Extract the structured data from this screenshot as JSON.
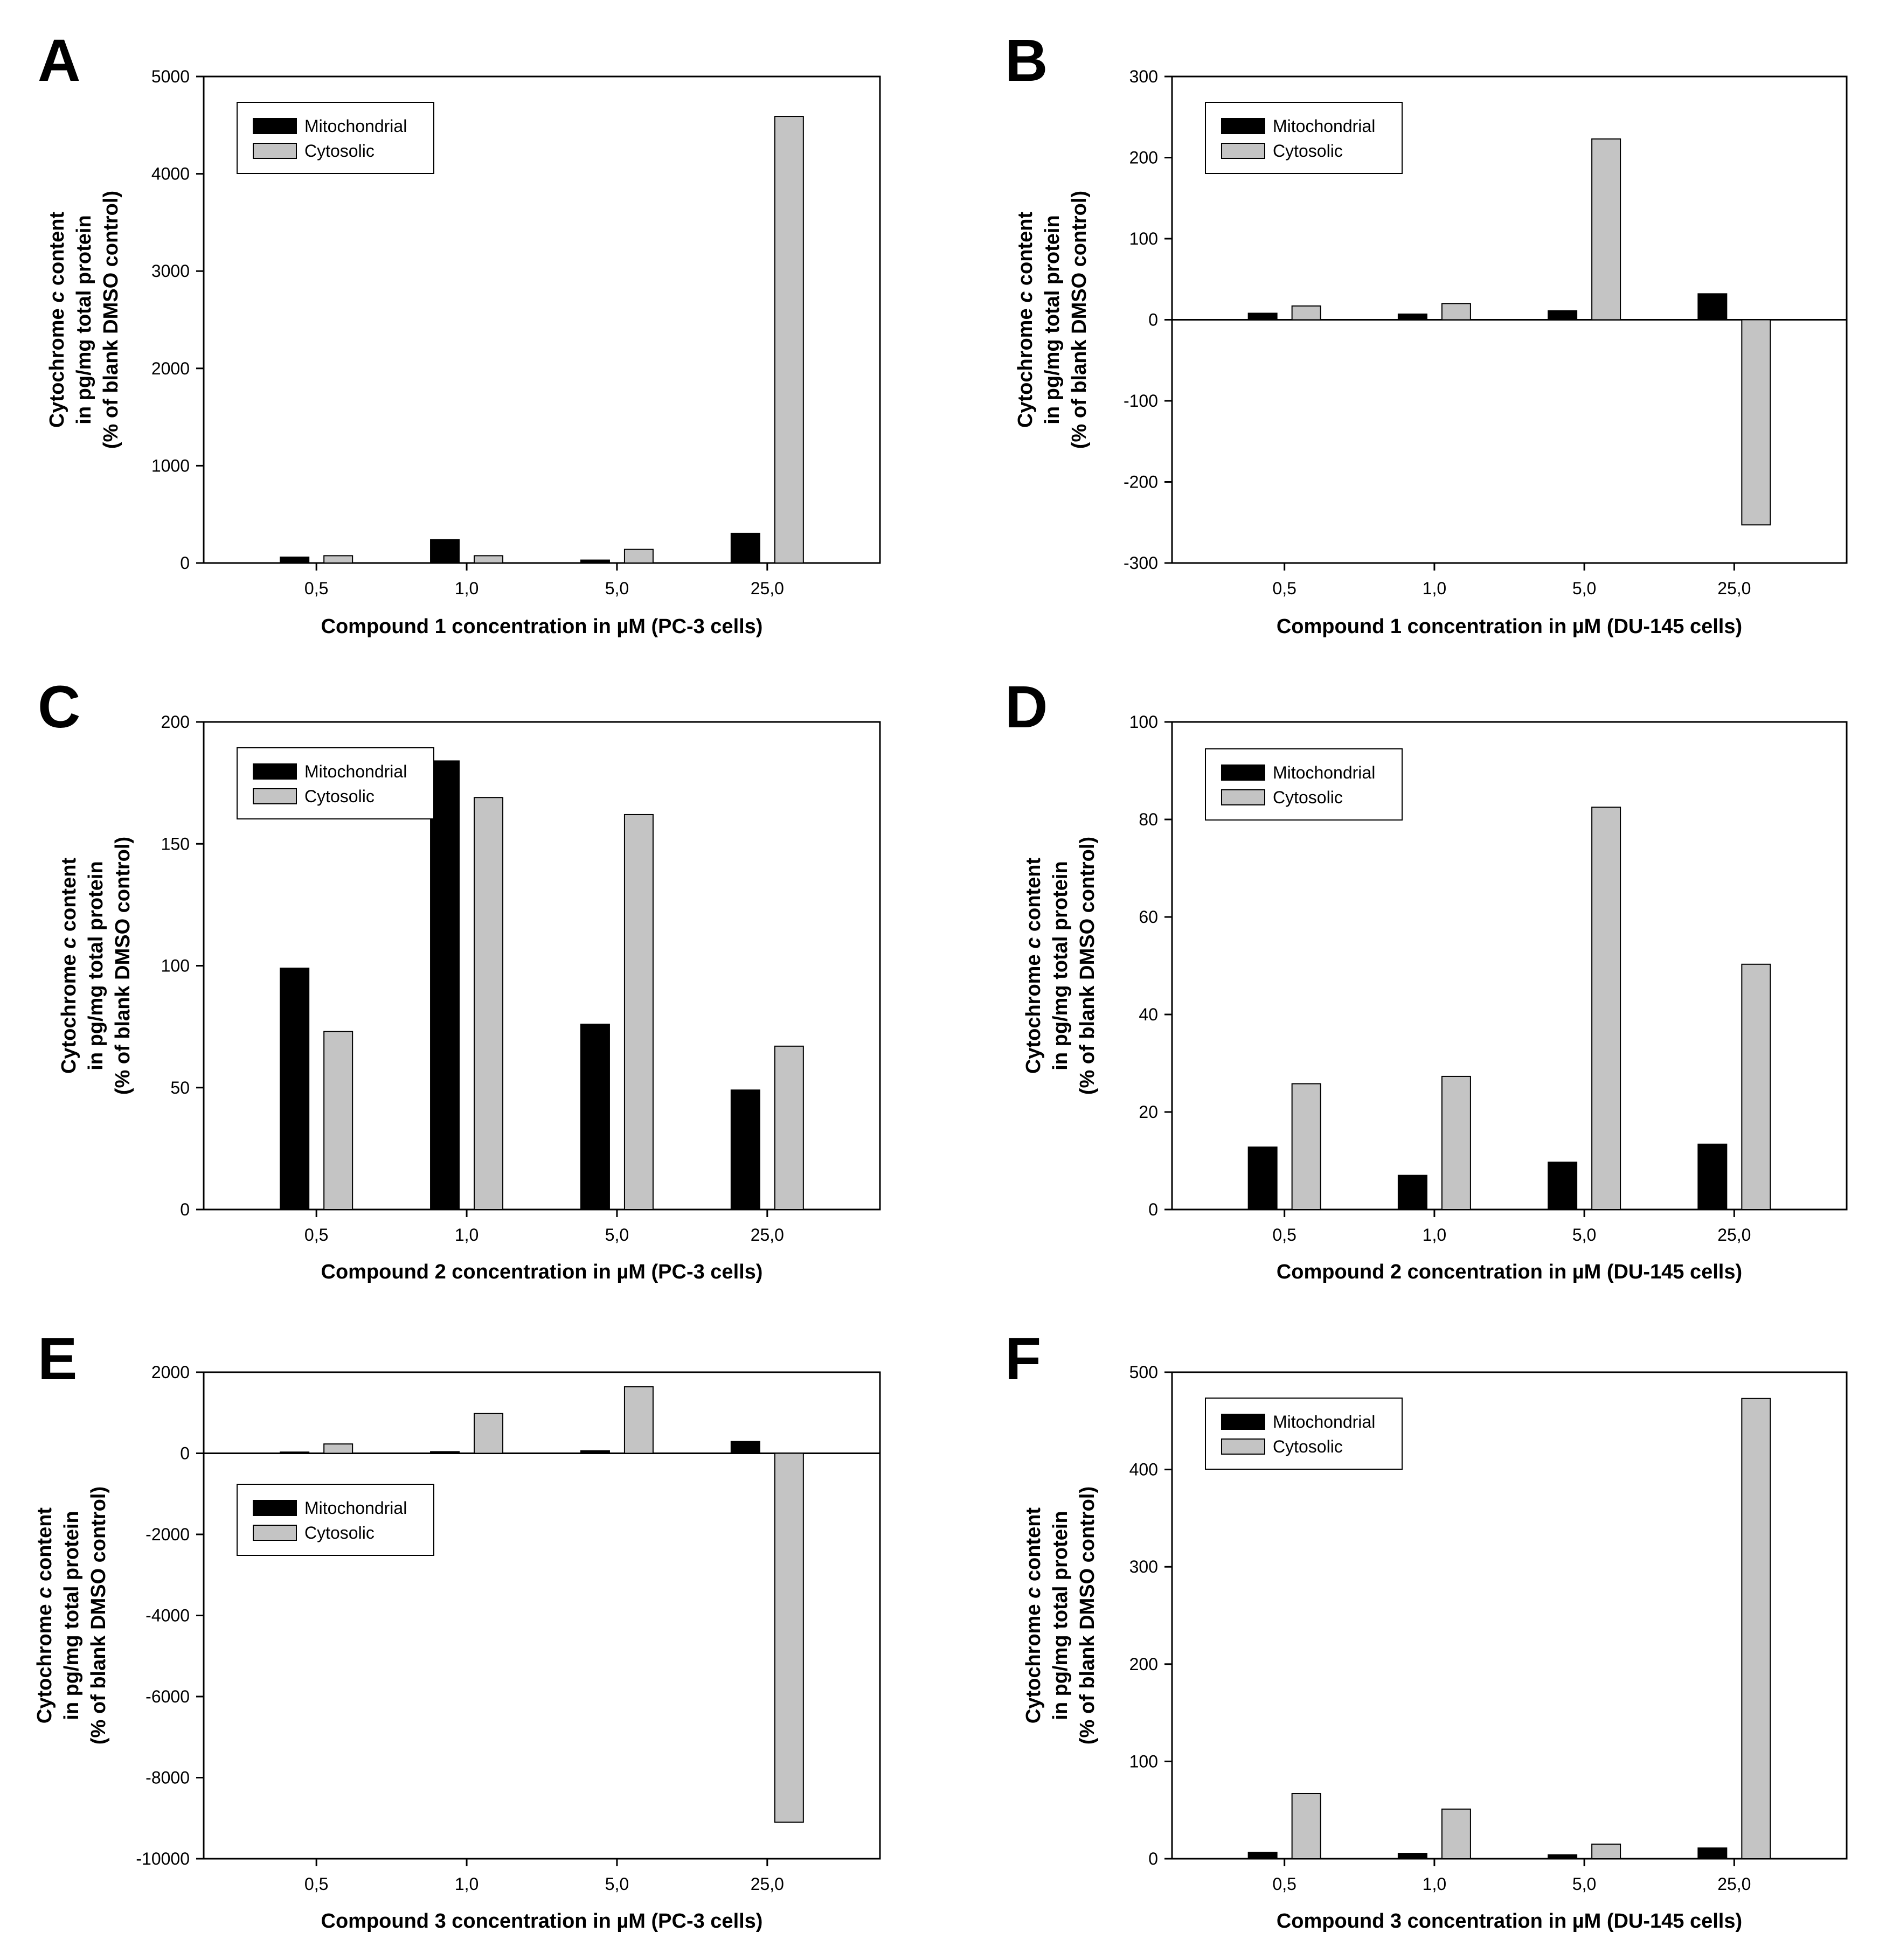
{
  "chart_data": [
    {
      "panel": "A",
      "type": "bar",
      "categories": [
        "0,5",
        "1,0",
        "5,0",
        "25,0"
      ],
      "series": [
        {
          "name": "Mitochondrial",
          "values": [
            60,
            240,
            30,
            305
          ]
        },
        {
          "name": "Cytosolic",
          "values": [
            75,
            75,
            140,
            4590
          ]
        }
      ],
      "ylim": [
        0,
        5000
      ],
      "yticks": [
        0,
        1000,
        2000,
        3000,
        4000,
        5000
      ],
      "ytick_labels": [
        "0",
        "1000",
        "2000",
        "3000",
        "4000",
        "5000"
      ],
      "ylabel": [
        "Cytochrome c content",
        "in pg/mg total protein",
        "(% of blank DMSO control)"
      ],
      "xlabel": "Compound 1 concentration in µM (PC-3 cells)",
      "legend_position": "top-left"
    },
    {
      "panel": "B",
      "type": "bar",
      "categories": [
        "0,5",
        "1,0",
        "5,0",
        "25,0"
      ],
      "series": [
        {
          "name": "Mitochondrial",
          "values": [
            8,
            7,
            11,
            32
          ]
        },
        {
          "name": "Cytosolic",
          "values": [
            17,
            20,
            223,
            -253
          ]
        }
      ],
      "ylim": [
        -300,
        300
      ],
      "yticks": [
        -300,
        -200,
        -100,
        0,
        100,
        200,
        300
      ],
      "ytick_labels": [
        "-300",
        "-200",
        "-100",
        "0",
        "100",
        "200",
        "300"
      ],
      "ylabel": [
        "Cytochrome c content",
        "in pg/mg total protein",
        "(% of blank DMSO control)"
      ],
      "xlabel": "Compound 1 concentration in µM (DU-145 cells)",
      "legend_position": "top-left"
    },
    {
      "panel": "C",
      "type": "bar",
      "categories": [
        "0,5",
        "1,0",
        "5,0",
        "25,0"
      ],
      "series": [
        {
          "name": "Mitochondrial",
          "values": [
            99,
            184,
            76,
            49
          ]
        },
        {
          "name": "Cytosolic",
          "values": [
            73,
            169,
            162,
            67
          ]
        }
      ],
      "ylim": [
        0,
        200
      ],
      "yticks": [
        0,
        50,
        100,
        150,
        200
      ],
      "ytick_labels": [
        "0",
        "50",
        "100",
        "150",
        "200"
      ],
      "ylabel": [
        "Cytochrome c content",
        "in pg/mg total protein",
        "(% of blank DMSO control)"
      ],
      "xlabel": "Compound 2 concentration in µM (PC-3 cells)",
      "legend_position": "top-left"
    },
    {
      "panel": "D",
      "type": "bar",
      "categories": [
        "0,5",
        "1,0",
        "5,0",
        "25,0"
      ],
      "series": [
        {
          "name": "Mitochondrial",
          "values": [
            12.8,
            7,
            9.7,
            13.4
          ]
        },
        {
          "name": "Cytosolic",
          "values": [
            25.8,
            27.3,
            82.5,
            50.3
          ]
        }
      ],
      "ylim": [
        0,
        100
      ],
      "yticks": [
        0,
        20,
        40,
        60,
        80,
        100
      ],
      "ytick_labels": [
        "0",
        "20",
        "40",
        "60",
        "80",
        "100"
      ],
      "ylabel": [
        "Cytochrome c content",
        "in pg/mg total protein",
        "(% of blank DMSO control)"
      ],
      "xlabel": "Compound 2 concentration in µM (DU-145 cells)",
      "legend_position": "top-left"
    },
    {
      "panel": "E",
      "type": "bar",
      "categories": [
        "0,5",
        "1,0",
        "5,0",
        "25,0"
      ],
      "series": [
        {
          "name": "Mitochondrial",
          "values": [
            30,
            40,
            60,
            290
          ]
        },
        {
          "name": "Cytosolic",
          "values": [
            230,
            980,
            1640,
            -9100
          ]
        }
      ],
      "ylim": [
        -10000,
        2000
      ],
      "yticks": [
        -10000,
        -8000,
        -6000,
        -4000,
        -2000,
        0,
        2000
      ],
      "ytick_labels": [
        "-10000",
        "-8000",
        "-6000",
        "-4000",
        "-2000",
        "0",
        "2000"
      ],
      "ylabel": [
        "Cytochrome c content",
        "in pg/mg total protein",
        "(% of blank DMSO control)"
      ],
      "xlabel": "Compound 3 concentration in µM (PC-3 cells)",
      "legend_position": "upper-left"
    },
    {
      "panel": "F",
      "type": "bar",
      "categories": [
        "0,5",
        "1,0",
        "5,0",
        "25,0"
      ],
      "series": [
        {
          "name": "Mitochondrial",
          "values": [
            6.5,
            5.5,
            4,
            11
          ]
        },
        {
          "name": "Cytosolic",
          "values": [
            67,
            51,
            15,
            473
          ]
        }
      ],
      "ylim": [
        0,
        500
      ],
      "yticks": [
        0,
        100,
        200,
        300,
        400,
        500
      ],
      "ytick_labels": [
        "0",
        "100",
        "200",
        "300",
        "400",
        "500"
      ],
      "ylabel": [
        "Cytochrome c content",
        "in pg/mg total protein",
        "(% of blank DMSO control)"
      ],
      "xlabel": "Compound 3 concentration in µM (DU-145 cells)",
      "legend_position": "top-left"
    }
  ],
  "colors": {
    "mitochondrial": "#000000",
    "cytosolic": "#c4c4c4",
    "bar_outline": "#000000"
  }
}
